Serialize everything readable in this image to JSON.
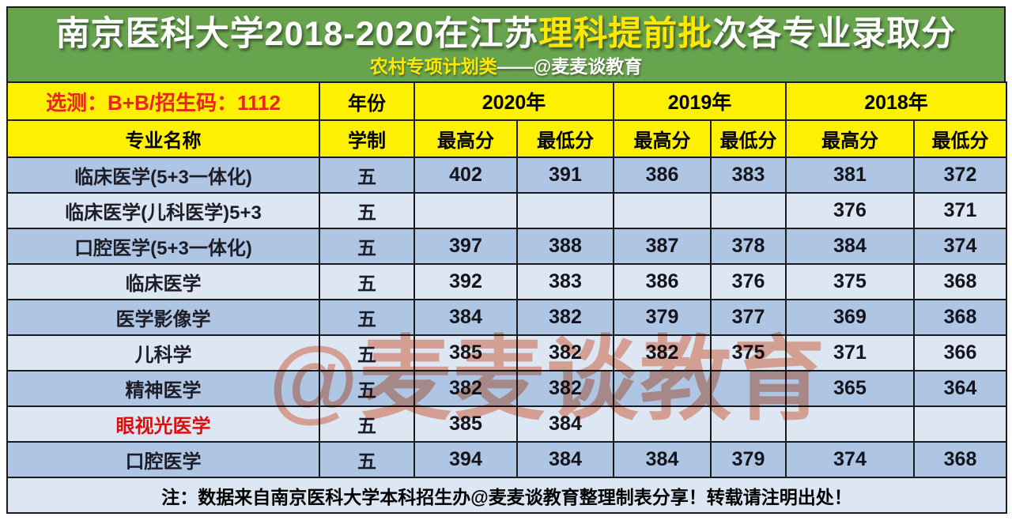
{
  "banner": {
    "title_main": "南京医科大学2018-2020在江苏",
    "title_highlight": "理科提前批",
    "title_tail": "次各专业录取分",
    "subtitle_highlight": "农村专项计划类",
    "subtitle_tail": "——@麦麦谈教育"
  },
  "header": {
    "exam_info": "选测：B+B/招生码：1112",
    "year_label": "年份",
    "years": [
      "2020年",
      "2019年",
      "2018年"
    ],
    "major_label": "专业名称",
    "duration_label": "学制",
    "max_label": "最高分",
    "min_label": "最低分"
  },
  "rows": [
    {
      "name": "临床医学(5+3一体化)",
      "duration": "五",
      "highlight": false,
      "scores": [
        "402",
        "391",
        "386",
        "383",
        "381",
        "372"
      ]
    },
    {
      "name": "临床医学(儿科医学)5+3",
      "duration": "五",
      "highlight": false,
      "scores": [
        "",
        "",
        "",
        "",
        "376",
        "371"
      ]
    },
    {
      "name": "口腔医学(5+3一体化)",
      "duration": "五",
      "highlight": false,
      "scores": [
        "397",
        "388",
        "387",
        "378",
        "384",
        "374"
      ]
    },
    {
      "name": "临床医学",
      "duration": "五",
      "highlight": false,
      "scores": [
        "392",
        "383",
        "386",
        "376",
        "375",
        "368"
      ]
    },
    {
      "name": "医学影像学",
      "duration": "五",
      "highlight": false,
      "scores": [
        "384",
        "382",
        "379",
        "377",
        "369",
        "368"
      ]
    },
    {
      "name": "儿科学",
      "duration": "五",
      "highlight": false,
      "scores": [
        "385",
        "382",
        "382",
        "375",
        "371",
        "366"
      ]
    },
    {
      "name": "精神医学",
      "duration": "五",
      "highlight": false,
      "scores": [
        "382",
        "382",
        "",
        "",
        "365",
        "364"
      ]
    },
    {
      "name": "眼视光医学",
      "duration": "五",
      "highlight": true,
      "scores": [
        "385",
        "384",
        "",
        "",
        "",
        ""
      ]
    },
    {
      "name": "口腔医学",
      "duration": "五",
      "highlight": false,
      "scores": [
        "394",
        "384",
        "384",
        "379",
        "374",
        "368"
      ]
    }
  ],
  "note": "注：数据来自南京医科大学本科招生办@麦麦谈教育整理制表分享！转载请注明出处！",
  "watermark": "@麦麦谈教育",
  "colors": {
    "banner_green": "#68a44d",
    "header_yellow": "#fdf000",
    "accent_red": "#e8251a",
    "row_dark": "#aec5e3",
    "row_light": "#dde6f3",
    "watermark_orange": "#ec764e"
  }
}
